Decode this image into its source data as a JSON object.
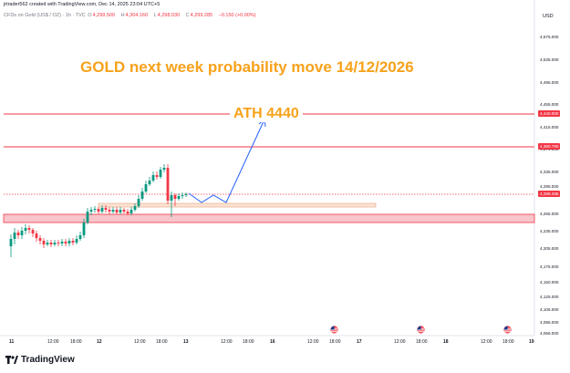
{
  "header": {
    "created_by": "jrtrader562 created with TradingView.com, Dec 14, 2025 23:04 UTC+5"
  },
  "instrument": {
    "name": "CFDs on Gold (US$ / OZ) · 1h · TVC",
    "open_label": "O",
    "open": "4,299.500",
    "high_label": "H",
    "high": "4,304.160",
    "low_label": "L",
    "low": "4,298.030",
    "close_label": "C",
    "close": "4,299.285",
    "change": "−0.150 (+0.00%)"
  },
  "annotations": {
    "title": "GOLD next week probability move 14/12/2026",
    "ath": "ATH 4440"
  },
  "price_axis": {
    "currency": "USD",
    "labels": [
      "4,575.000",
      "4,535.000",
      "4,495.000",
      "4,455.000",
      "4,415.000",
      "4,375.000",
      "4,335.000",
      "4,295.000",
      "4,265.000",
      "4,235.000",
      "4,205.000",
      "4,175.000",
      "4,150.000",
      "4,125.000",
      "4,106.000",
      "4,086.000",
      "4,066.000"
    ],
    "tags": [
      {
        "text": "4,440.000",
        "color": "#f23645"
      },
      {
        "text": "4,380.790",
        "color": "#f23645"
      },
      {
        "text": "4,299.285",
        "color": "#f23645"
      }
    ]
  },
  "time_axis": {
    "labels": [
      {
        "text": "11",
        "bold": true
      },
      {
        "text": "12:00",
        "bold": false
      },
      {
        "text": "18:00",
        "bold": false
      },
      {
        "text": "12",
        "bold": true
      },
      {
        "text": "12:00",
        "bold": false
      },
      {
        "text": "18:00",
        "bold": false
      },
      {
        "text": "13",
        "bold": true
      },
      {
        "text": "12:00",
        "bold": false
      },
      {
        "text": "18:00",
        "bold": false
      },
      {
        "text": "16",
        "bold": true
      },
      {
        "text": "12:00",
        "bold": false
      },
      {
        "text": "18:00",
        "bold": false
      },
      {
        "text": "17",
        "bold": true
      },
      {
        "text": "12:00",
        "bold": false
      },
      {
        "text": "18:00",
        "bold": false
      },
      {
        "text": "18",
        "bold": true
      },
      {
        "text": "12:00",
        "bold": false
      },
      {
        "text": "18:00",
        "bold": false
      },
      {
        "text": "19",
        "bold": true
      }
    ]
  },
  "colors": {
    "up": "#089981",
    "down": "#f23645",
    "projection": "#2962ff",
    "annotation": "#f7a21b",
    "zone": "#f7c5cb"
  },
  "icons": {
    "us_flag": "us-flag-icon",
    "logo": "tradingview-logo-icon"
  },
  "brand": {
    "name": "TradingView"
  }
}
